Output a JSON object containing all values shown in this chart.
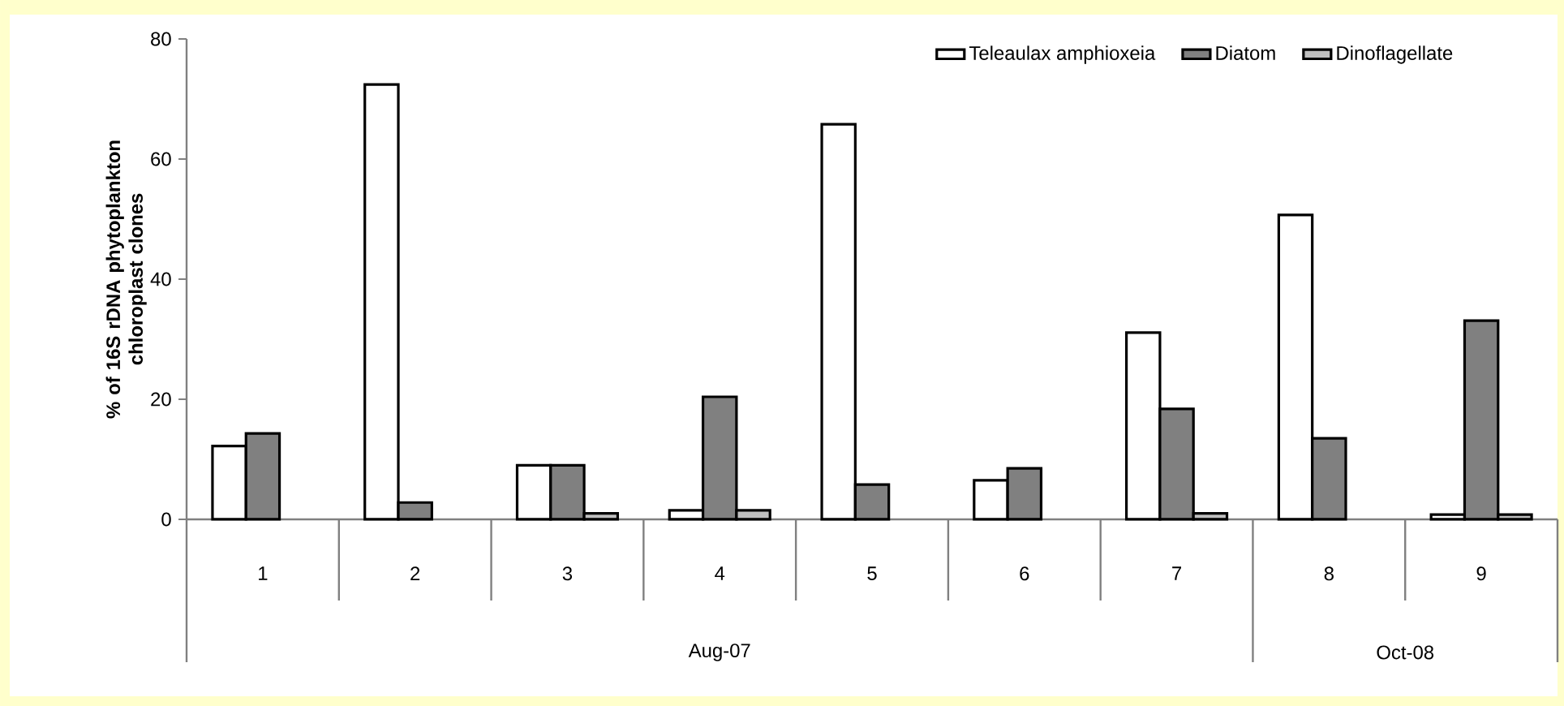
{
  "chart_data": {
    "type": "bar",
    "ylabel": "% of 16S rDNA phytoplankton chloroplast clones",
    "categories": [
      "1",
      "2",
      "3",
      "4",
      "5",
      "6",
      "7",
      "8",
      "9"
    ],
    "series": [
      {
        "name": "Teleaulax amphioxeia",
        "color": "#ffffff",
        "values": [
          12.2,
          72.4,
          9,
          1.5,
          65.8,
          6.5,
          31.1,
          50.7,
          0.8
        ]
      },
      {
        "name": "Diatom",
        "color": "#808080",
        "values": [
          14.3,
          2.8,
          9,
          20.4,
          5.8,
          8.5,
          18.4,
          13.5,
          33.1
        ]
      },
      {
        "name": "Dinoflagellate",
        "color": "#bfbfbf",
        "values": [
          null,
          null,
          1,
          1.5,
          null,
          null,
          1,
          null,
          0.8
        ]
      }
    ],
    "ylim": [
      0,
      80
    ],
    "yticks": [
      0,
      20,
      40,
      60,
      80
    ],
    "grid": false,
    "legend": "top right",
    "annotations": [
      "Aug-07",
      "Oct-08"
    ]
  }
}
